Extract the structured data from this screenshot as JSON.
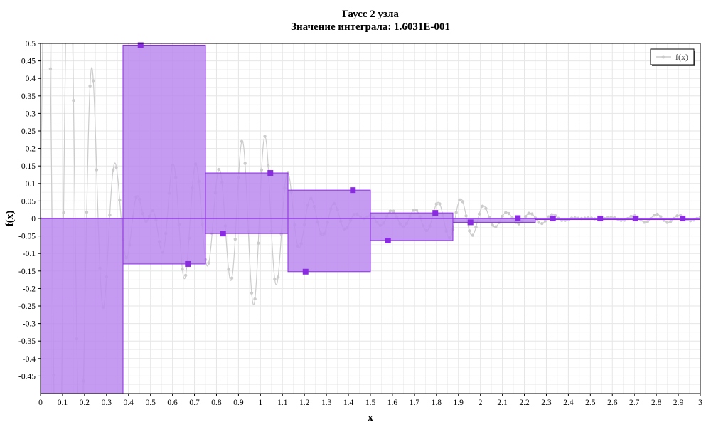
{
  "chart_data": {
    "type": "bar",
    "title": "Гаусс 2 узла",
    "subtitle": "Значение интеграла: 1.6031E-001",
    "xlabel": "x",
    "ylabel": "f(x)",
    "xlim": [
      0,
      3
    ],
    "ylim": [
      -0.5,
      0.5
    ],
    "x_ticks": [
      "0",
      "0.1",
      "0.2",
      "0.3",
      "0.4",
      "0.5",
      "0.6",
      "0.7",
      "0.8",
      "0.9",
      "1",
      "1.1",
      "1.2",
      "1.3",
      "1.4",
      "1.5",
      "1.6",
      "1.7",
      "1.8",
      "1.9",
      "2",
      "2.1",
      "2.2",
      "2.3",
      "2.4",
      "2.5",
      "2.6",
      "2.7",
      "2.8",
      "2.9",
      "3"
    ],
    "y_ticks": [
      "0.5",
      "0.45",
      "0.4",
      "0.35",
      "0.3",
      "0.25",
      "0.2",
      "0.15",
      "0.1",
      "0.05",
      "0",
      "-0.05",
      "-0.1",
      "-0.15",
      "-0.2",
      "-0.25",
      "-0.3",
      "-0.35",
      "-0.4",
      "-0.45"
    ],
    "grid": true,
    "legend": {
      "position": "top-right",
      "entries": [
        "f(x)"
      ]
    },
    "function_series": {
      "name": "f(x)",
      "color": "#cccccc"
    },
    "bars": [
      {
        "x0": 0.0,
        "x1": 0.375,
        "height": -0.5
      },
      {
        "x0": 0.375,
        "x1": 0.75,
        "height": 0.495
      },
      {
        "x0": 0.375,
        "x1": 0.75,
        "height": -0.13
      },
      {
        "x0": 0.75,
        "x1": 1.125,
        "height": 0.13
      },
      {
        "x0": 0.75,
        "x1": 1.125,
        "height": -0.043
      },
      {
        "x0": 1.125,
        "x1": 1.5,
        "height": 0.081
      },
      {
        "x0": 1.125,
        "x1": 1.5,
        "height": -0.152
      },
      {
        "x0": 1.5,
        "x1": 1.875,
        "height": 0.016
      },
      {
        "x0": 1.5,
        "x1": 1.875,
        "height": -0.063
      },
      {
        "x0": 1.875,
        "x1": 2.25,
        "height": -0.011
      },
      {
        "x0": 2.25,
        "x1": 3.0,
        "height": 0.001
      }
    ],
    "nodes": [
      {
        "x": 0.455,
        "y": 0.495
      },
      {
        "x": 0.67,
        "y": -0.13
      },
      {
        "x": 0.83,
        "y": -0.043
      },
      {
        "x": 1.045,
        "y": 0.13
      },
      {
        "x": 1.205,
        "y": -0.152
      },
      {
        "x": 1.42,
        "y": 0.081
      },
      {
        "x": 1.58,
        "y": -0.063
      },
      {
        "x": 1.795,
        "y": 0.016
      },
      {
        "x": 1.955,
        "y": -0.011
      },
      {
        "x": 2.17,
        "y": 0.001
      },
      {
        "x": 2.33,
        "y": 0.0
      },
      {
        "x": 2.545,
        "y": 0.0
      },
      {
        "x": 2.705,
        "y": 0.0
      },
      {
        "x": 2.92,
        "y": 0.0
      }
    ],
    "colors": {
      "bar_fill": "#bb88ee",
      "bar_stroke": "#8a2be2",
      "node": "#8a2be2",
      "grid": "#e6e6e6",
      "curve": "#cccccc"
    }
  }
}
